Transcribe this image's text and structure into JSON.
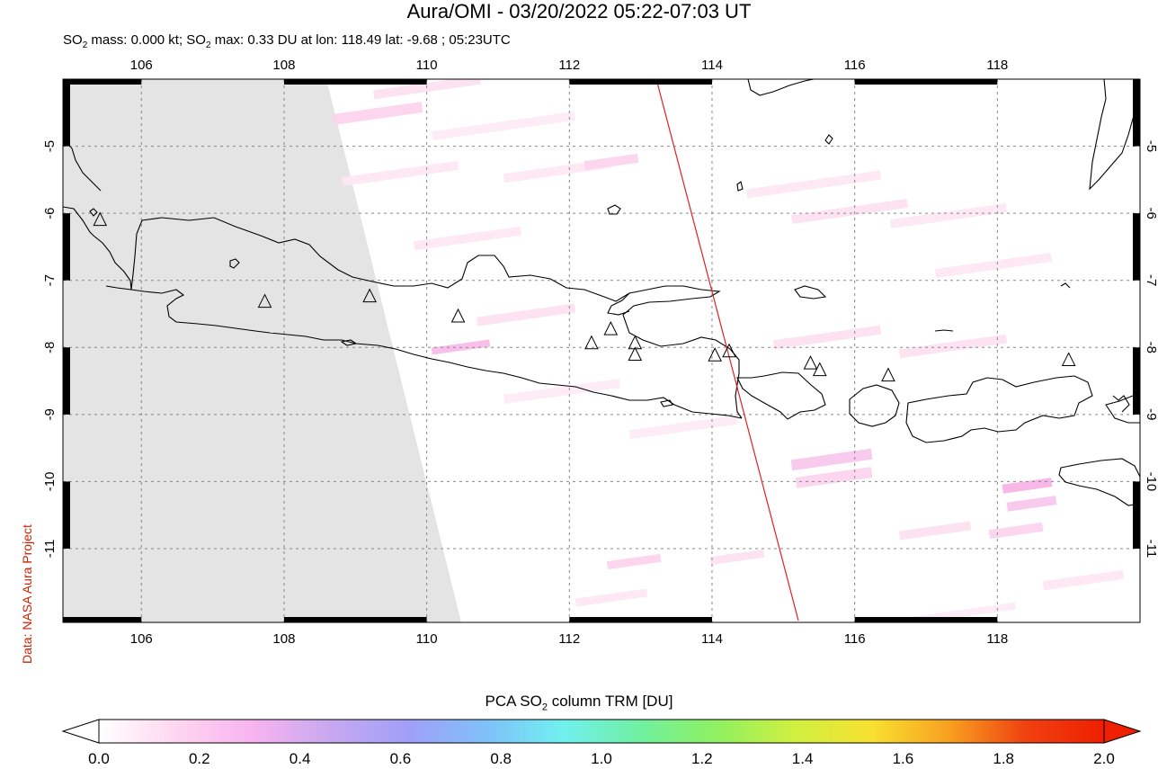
{
  "title": "Aura/OMI - 03/20/2022 05:22-07:03 UT",
  "subtitle": {
    "part1": "SO",
    "sub1": "2",
    "part2": " mass: 0.000 kt; SO",
    "sub2": "2",
    "part3": " max: 0.33 DU at lon: 118.49 lat: -9.68 ; 05:23UTC"
  },
  "credit": "Data: NASA Aura Project",
  "map": {
    "lon_range": [
      104.9,
      120.0
    ],
    "lat_range": [
      -12.1,
      -4.0
    ],
    "lon_ticks": [
      "106",
      "108",
      "110",
      "112",
      "114",
      "116",
      "118"
    ],
    "lon_tick_values": [
      106,
      108,
      110,
      112,
      114,
      116,
      118
    ],
    "lat_ticks": [
      "-5",
      "-6",
      "-7",
      "-8",
      "-9",
      "-10",
      "-11"
    ],
    "lat_tick_values": [
      -5,
      -6,
      -7,
      -8,
      -9,
      -10,
      -11
    ],
    "grid": "dashed",
    "no_data_color": "#e4e4e4",
    "coast_color": "#000000",
    "track_color": "#dd2222",
    "volcanoes": [
      {
        "lon": 105.42,
        "lat": -6.1
      },
      {
        "lon": 107.73,
        "lat": -7.32
      },
      {
        "lon": 109.2,
        "lat": -7.24
      },
      {
        "lon": 110.44,
        "lat": -7.54
      },
      {
        "lon": 112.31,
        "lat": -7.94
      },
      {
        "lon": 112.58,
        "lat": -7.73
      },
      {
        "lon": 112.92,
        "lat": -7.94
      },
      {
        "lon": 112.92,
        "lat": -8.11
      },
      {
        "lon": 114.04,
        "lat": -8.12
      },
      {
        "lon": 114.24,
        "lat": -8.06
      },
      {
        "lon": 115.38,
        "lat": -8.24
      },
      {
        "lon": 115.51,
        "lat": -8.34
      },
      {
        "lon": 116.47,
        "lat": -8.42
      },
      {
        "lon": 119.0,
        "lat": -8.19
      }
    ]
  },
  "colorbar": {
    "title_part1": "PCA SO",
    "title_sub": "2",
    "title_part2": " column TRM [DU]",
    "ticks": [
      "0.0",
      "0.2",
      "0.4",
      "0.6",
      "0.8",
      "1.0",
      "1.2",
      "1.4",
      "1.6",
      "1.8",
      "2.0"
    ],
    "tick_values": [
      0.0,
      0.2,
      0.4,
      0.6,
      0.8,
      1.0,
      1.2,
      1.4,
      1.6,
      1.8,
      2.0
    ],
    "range": [
      0.0,
      2.0
    ],
    "colors": [
      "#ffffff",
      "#ffd6f0",
      "#f7b3f0",
      "#c8a8f0",
      "#a0a0f8",
      "#80c0f8",
      "#70f0f0",
      "#70f0a0",
      "#90f060",
      "#d0f040",
      "#f8e030",
      "#f8a020",
      "#f04010",
      "#ee2000"
    ],
    "under_color": "#ffffff",
    "over_color": "#ee2000"
  }
}
